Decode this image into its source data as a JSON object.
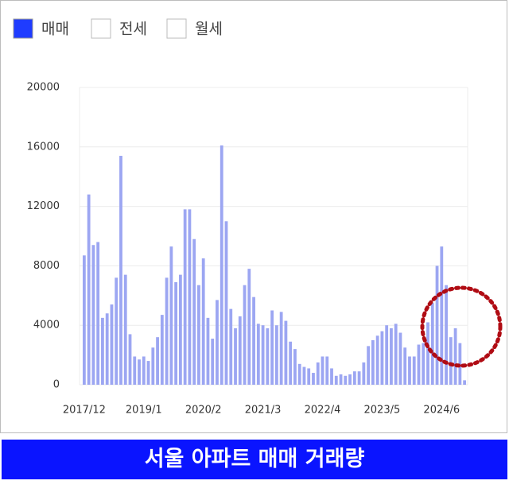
{
  "chart_data": {
    "type": "bar",
    "caption": "서울 아파트 매매 거래량",
    "categories": [
      "2017/12",
      null,
      null,
      null,
      null,
      null,
      null,
      null,
      null,
      null,
      null,
      null,
      null,
      "2019/1",
      null,
      null,
      null,
      null,
      null,
      null,
      null,
      null,
      null,
      null,
      null,
      null,
      "2020/2",
      null,
      null,
      null,
      null,
      null,
      null,
      null,
      null,
      null,
      null,
      null,
      null,
      "2021/3",
      null,
      null,
      null,
      null,
      null,
      null,
      null,
      null,
      null,
      null,
      null,
      null,
      "2022/4",
      null,
      null,
      null,
      null,
      null,
      null,
      null,
      null,
      null,
      null,
      null,
      null,
      "2023/5",
      null,
      null,
      null,
      null,
      null,
      null,
      null,
      null,
      null,
      null,
      null,
      null,
      "2024/6",
      null,
      null,
      null,
      null,
      null
    ],
    "series": [
      {
        "name": "매매",
        "color": "#9ca6f2",
        "legend_color": "#1f3cff",
        "values": [
          8700,
          12800,
          9400,
          9600,
          4500,
          4800,
          5400,
          7200,
          15400,
          7400,
          3400,
          1900,
          1700,
          1900,
          1600,
          2500,
          3200,
          4700,
          7200,
          9300,
          6900,
          7400,
          11800,
          11800,
          9800,
          6700,
          8500,
          4500,
          3100,
          5700,
          16100,
          11000,
          5100,
          3800,
          4600,
          6700,
          7800,
          5900,
          4100,
          4000,
          3800,
          5000,
          4000,
          4900,
          4300,
          2900,
          2400,
          1400,
          1200,
          1100,
          800,
          1500,
          1900,
          1900,
          1100,
          600,
          700,
          600,
          700,
          900,
          900,
          1500,
          2600,
          3000,
          3300,
          3600,
          4000,
          3800,
          4100,
          3500,
          2500,
          1900,
          1900,
          2700,
          2800,
          4200,
          5500,
          8000,
          9300,
          6700,
          3200,
          3800,
          2800,
          300
        ]
      }
    ],
    "inactive_legend": [
      "전세",
      "월세"
    ],
    "ylim": [
      0,
      20000
    ],
    "yticks": [
      0,
      4000,
      8000,
      12000,
      16000,
      20000
    ],
    "grid": true
  }
}
